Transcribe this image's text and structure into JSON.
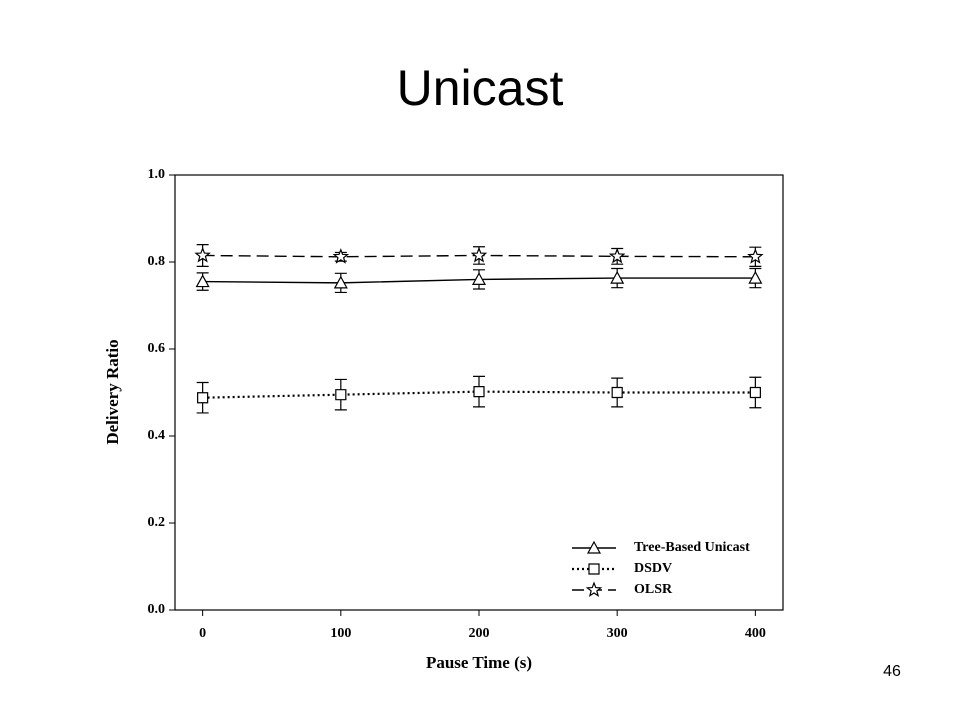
{
  "chart_data": {
    "type": "line",
    "title": "Unicast",
    "x_label": "Pause Time (s)",
    "y_label": "Delivery Ratio",
    "x": [
      0,
      100,
      200,
      300,
      400
    ],
    "series": [
      {
        "name": "Tree-Based Unicast",
        "color": "#000000",
        "linestyle": "solid",
        "marker": "triangle",
        "values": [
          0.755,
          0.752,
          0.76,
          0.763,
          0.763
        ],
        "errors": [
          0.02,
          0.022,
          0.022,
          0.022,
          0.022
        ]
      },
      {
        "name": "DSDV",
        "color": "#000000",
        "linestyle": "dotted",
        "marker": "square",
        "values": [
          0.488,
          0.495,
          0.502,
          0.5,
          0.5
        ],
        "errors": [
          0.035,
          0.035,
          0.035,
          0.033,
          0.035
        ]
      },
      {
        "name": "OLSR",
        "color": "#000000",
        "linestyle": "dashed",
        "marker": "star",
        "values": [
          0.815,
          0.812,
          0.815,
          0.813,
          0.812
        ],
        "errors": [
          0.025,
          0.01,
          0.02,
          0.018,
          0.022
        ]
      }
    ],
    "xlim": [
      -20,
      420
    ],
    "xticks": [
      0,
      100,
      200,
      300,
      400
    ],
    "ylim": [
      0,
      1
    ],
    "yticks": [
      {
        "value": 0,
        "label": "0.0"
      },
      0.2,
      0.4,
      0.6,
      0.8,
      {
        "value": 1,
        "label": "1.0"
      }
    ],
    "grid": false,
    "legend": "lower right"
  },
  "page_number": "46"
}
